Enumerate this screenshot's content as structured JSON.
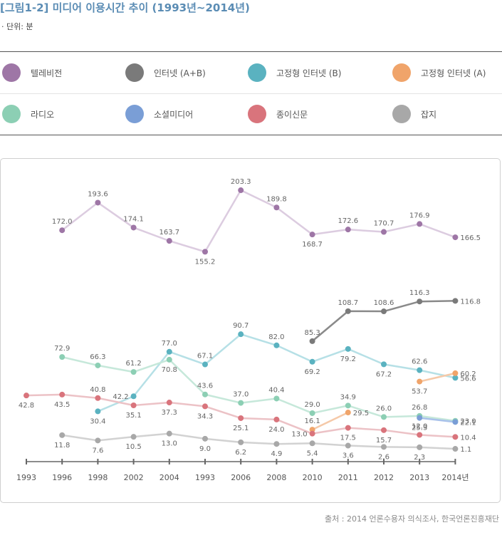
{
  "header": {
    "title": "[그림1-2] 미디어 이용시간 추이 (1993년~2014년)",
    "unit": "· 단위: 분"
  },
  "legend": [
    {
      "name": "텔레비전",
      "color": "#9e76a6"
    },
    {
      "name": "인터넷 (A+B)",
      "color": "#7a7a7a"
    },
    {
      "name": "고정형 인터넷 (B)",
      "color": "#5ab2c0"
    },
    {
      "name": "고정형 인터넷 (A)",
      "color": "#f0a46a"
    },
    {
      "name": "라디오",
      "color": "#8ccfb4"
    },
    {
      "name": "소셜미디어",
      "color": "#7a9ed6"
    },
    {
      "name": "종이신문",
      "color": "#d9747c"
    },
    {
      "name": "잡지",
      "color": "#a8a8a8"
    }
  ],
  "source": "출처 : 2014 언론수용자 의식조사, 한국언론진흥재단",
  "chart_data": {
    "type": "line",
    "categories": [
      "1993",
      "1996",
      "1998",
      "2002",
      "2004",
      "1993",
      "2006",
      "2008",
      "2010",
      "2011",
      "2012",
      "2013",
      "2014년"
    ],
    "ylim": [
      0,
      210
    ],
    "series": [
      {
        "name": "텔레비전",
        "color": "#9e76a6",
        "line": "#dccce0",
        "values": [
          null,
          172.0,
          193.6,
          174.1,
          163.7,
          155.2,
          203.3,
          189.8,
          168.7,
          172.6,
          170.7,
          176.9,
          166.5
        ],
        "labels": [
          null,
          "172.0",
          "193.6",
          "174.1",
          "163.7",
          "155.2",
          "203.3",
          "189.8",
          "168.7",
          "172.6",
          "170.7",
          "176.9",
          "166.5"
        ],
        "pos": [
          null,
          "above",
          "above",
          "above",
          "above",
          "below",
          "above",
          "above",
          "below",
          "above",
          "above",
          "above",
          "right"
        ]
      },
      {
        "name": "인터넷 (A+B)",
        "color": "#7a7a7a",
        "line": "#8a8a8a",
        "values": [
          null,
          null,
          null,
          null,
          null,
          null,
          null,
          null,
          85.3,
          108.7,
          108.6,
          116.3,
          116.8
        ],
        "labels": [
          null,
          null,
          null,
          null,
          null,
          null,
          null,
          null,
          "85.3",
          "108.7",
          "108.6",
          "116.3",
          "116.8"
        ],
        "pos": [
          null,
          null,
          null,
          null,
          null,
          null,
          null,
          null,
          "above",
          "above",
          "above",
          "above",
          "right"
        ]
      },
      {
        "name": "고정형 인터넷 (B)",
        "color": "#5ab2c0",
        "line": "#b6e0e6",
        "values": [
          null,
          null,
          30.4,
          42.2,
          77.0,
          67.1,
          90.7,
          82.0,
          69.2,
          79.2,
          67.2,
          62.6,
          56.6
        ],
        "labels": [
          null,
          null,
          "30.4",
          "42.2",
          "77.0",
          "67.1",
          "90.7",
          "82.0",
          "69.2",
          "79.2",
          "67.2",
          "62.6",
          "56.6"
        ],
        "pos": [
          null,
          null,
          "below",
          "left",
          "above",
          "above",
          "above",
          "above",
          "below",
          "below",
          "below",
          "above",
          "right"
        ]
      },
      {
        "name": "고정형 인터넷 (A)",
        "color": "#f0a46a",
        "line": "#f5c9a8",
        "values": [
          null,
          null,
          null,
          null,
          null,
          null,
          null,
          null,
          16.1,
          29.5,
          null,
          53.7,
          60.2
        ],
        "labels": [
          null,
          null,
          null,
          null,
          null,
          null,
          null,
          null,
          "16.1",
          "29.5",
          null,
          "53.7",
          "60.2"
        ],
        "pos": [
          null,
          null,
          null,
          null,
          null,
          null,
          null,
          null,
          "above",
          "right",
          null,
          "below",
          "right"
        ]
      },
      {
        "name": "라디오",
        "color": "#8ccfb4",
        "line": "#c6e8da",
        "values": [
          null,
          72.9,
          66.3,
          61.2,
          70.8,
          43.6,
          37.0,
          40.4,
          29.0,
          34.9,
          26.0,
          26.8,
          23.0
        ],
        "labels": [
          null,
          "72.9",
          "66.3",
          "61.2",
          "70.8",
          "43.6",
          "37.0",
          "40.4",
          "29.0",
          "34.9",
          "26.0",
          "26.8",
          "23.0"
        ],
        "pos": [
          null,
          "above",
          "above",
          "above",
          "below",
          "above",
          "above",
          "above",
          "above",
          "above",
          "above",
          "above",
          "right"
        ]
      },
      {
        "name": "소셜미디어",
        "color": "#7a9ed6",
        "line": "#a9c2ea",
        "values": [
          null,
          null,
          null,
          null,
          null,
          null,
          null,
          null,
          null,
          null,
          null,
          25.3,
          22.1
        ],
        "labels": [
          null,
          null,
          null,
          null,
          null,
          null,
          null,
          null,
          null,
          null,
          null,
          "25.3",
          "22.1"
        ],
        "pos": [
          null,
          null,
          null,
          null,
          null,
          null,
          null,
          null,
          null,
          null,
          null,
          "below",
          "right"
        ]
      },
      {
        "name": "종이신문",
        "color": "#d9747c",
        "line": "#ecc2c6",
        "values": [
          42.8,
          43.5,
          40.8,
          35.1,
          37.3,
          34.3,
          25.1,
          24.0,
          13.0,
          17.5,
          15.7,
          12.0,
          10.4
        ],
        "labels": [
          "42.8",
          "43.5",
          "40.8",
          "35.1",
          "37.3",
          "34.3",
          "25.1",
          "24.0",
          "13.0",
          "17.5",
          "15.7",
          "12.0",
          "10.4"
        ],
        "pos": [
          "below",
          "below",
          "above",
          "below",
          "below",
          "below",
          "below",
          "below",
          "left",
          "below",
          "below",
          "above",
          "right"
        ]
      },
      {
        "name": "잡지",
        "color": "#a8a8a8",
        "line": "#d2d2d2",
        "values": [
          null,
          11.8,
          7.6,
          10.5,
          13.0,
          9.0,
          6.2,
          4.9,
          5.4,
          3.6,
          2.6,
          2.3,
          1.1
        ],
        "labels": [
          null,
          "11.8",
          "7.6",
          "10.5",
          "13.0",
          "9.0",
          "6.2",
          "4.9",
          "5.4",
          "3.6",
          "2.6",
          "2.3",
          "1.1"
        ],
        "pos": [
          null,
          "below",
          "below",
          "below",
          "below",
          "below",
          "below",
          "below",
          "below",
          "below",
          "below",
          "below",
          "right"
        ]
      }
    ]
  }
}
